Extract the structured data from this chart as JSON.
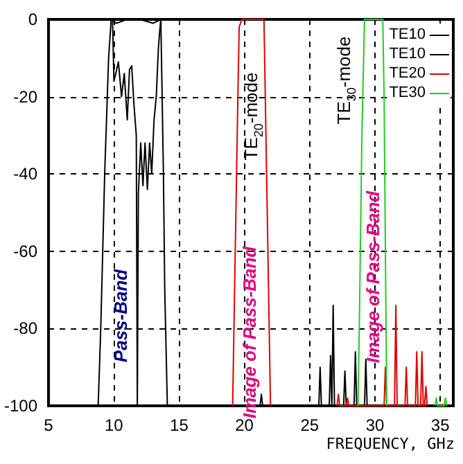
{
  "chart_data": {
    "type": "line",
    "xlabel": "FREQUENCY, GHz",
    "xlim": [
      5,
      36
    ],
    "xticks": [
      5,
      10,
      15,
      20,
      25,
      30,
      35
    ],
    "ylim": [
      -100,
      0
    ],
    "yticks": [
      -100,
      -80,
      -60,
      -40,
      -20,
      0
    ],
    "grid": true,
    "legend": "top right",
    "marker": "none",
    "line_style": "solid",
    "series": [
      {
        "name": "TE10",
        "color": "#000000",
        "x": [
          8.8,
          9.0,
          9.3,
          9.6,
          9.8,
          10.2,
          11,
          12,
          13,
          13.6,
          13.8,
          13.9,
          14.1
        ],
        "values": [
          -100,
          -80,
          -40,
          -10,
          0,
          -1,
          0,
          0,
          -1,
          0,
          -40,
          -70,
          -100
        ]
      },
      {
        "name": "TE10",
        "color": "#000000",
        "x": [
          9.9,
          10.01,
          10.35,
          10.59,
          10.8,
          11.03,
          11.2,
          11.37,
          11.54,
          11.72,
          11.8,
          11.88,
          12.06,
          12.23,
          12.39,
          12.57,
          12.74,
          12.9,
          13.08,
          13.25,
          13.42,
          13.59,
          13.7,
          21.2,
          21.3,
          21.4,
          25.7,
          25.8,
          25.9,
          26.5,
          26.6,
          26.7,
          26.8,
          26.9,
          27.6,
          27.7,
          27.8,
          28.4,
          28.5,
          28.6,
          29.2,
          29.3,
          29.4
        ],
        "values": [
          0,
          -16,
          -11,
          -20,
          -14,
          -26,
          -13,
          -12,
          -22,
          -30,
          -100,
          -45,
          -32,
          -43,
          -32,
          -44,
          -32,
          -40,
          -26,
          -20,
          -7,
          0,
          null,
          -100,
          -97,
          -100,
          -100,
          -90,
          -100,
          -100,
          -87,
          -100,
          -74,
          -100,
          -100,
          -91,
          -100,
          -100,
          -86,
          -100,
          -100,
          -88,
          -100
        ]
      },
      {
        "name": "TE20",
        "color": "#e00000",
        "x": [
          19.1,
          19.3,
          19.5,
          19.6,
          19.8,
          21.5,
          21.7,
          22.0,
          22.1,
          27.1,
          27.2,
          27.3,
          27.8,
          27.9,
          28.0,
          30.7,
          30.8,
          30.9,
          31.5,
          31.6,
          31.7,
          32.3,
          32.4,
          32.5,
          33.1,
          33.2,
          33.3,
          33.5,
          33.6,
          33.7,
          33.8,
          33.9,
          34.0
        ],
        "values": [
          -100,
          -60,
          -20,
          -2,
          0,
          0,
          -40,
          -100,
          null,
          -100,
          -97,
          -100,
          -100,
          -98,
          -100,
          -100,
          -90,
          -100,
          -100,
          -74,
          -100,
          -100,
          -90,
          -100,
          -100,
          -86,
          -100,
          -100,
          -86,
          -100,
          -100,
          -95,
          -100
        ]
      },
      {
        "name": "TE30",
        "color": "#22cc22",
        "x": [
          28.7,
          28.8,
          29.0,
          29.2,
          30.6,
          30.7,
          30.8,
          30.9,
          31.0,
          34.6,
          34.7,
          34.8,
          35.3,
          35.4,
          35.5
        ],
        "values": [
          -100,
          -80,
          -30,
          0,
          0,
          -20,
          -60,
          -100,
          null,
          -100,
          -98,
          -100,
          -100,
          -98,
          -100
        ]
      }
    ],
    "annotations": [
      "Pass-Band",
      "Image of Pass-Band",
      "Image of Pass-Band",
      "TE$_{20}$-mode",
      "TE$_{30}$-mode"
    ]
  }
}
